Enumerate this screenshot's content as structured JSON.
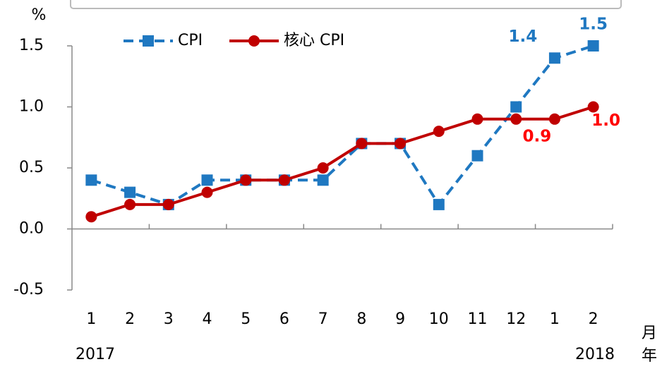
{
  "chart_data": {
    "type": "line",
    "y_unit": "%",
    "x_unit": "月",
    "year_unit": "年",
    "categories": [
      "1",
      "2",
      "3",
      "4",
      "5",
      "6",
      "7",
      "8",
      "9",
      "10",
      "11",
      "12",
      "1",
      "2"
    ],
    "years": [
      "2017",
      "2018"
    ],
    "series": [
      {
        "name": "CPI",
        "color": "#1f78c1",
        "dash": true,
        "marker": "square",
        "values": [
          0.4,
          0.3,
          0.2,
          0.4,
          0.4,
          0.4,
          0.4,
          0.7,
          0.7,
          0.2,
          0.6,
          1.0,
          1.4,
          1.5
        ],
        "value_labels": [
          null,
          null,
          null,
          null,
          null,
          null,
          null,
          null,
          null,
          null,
          null,
          null,
          "1.4",
          "1.5"
        ],
        "label_color": "#1f78c1"
      },
      {
        "name": "核心 CPI",
        "color": "#c00000",
        "dash": false,
        "marker": "circle",
        "values": [
          0.1,
          0.2,
          0.2,
          0.3,
          0.4,
          0.4,
          0.5,
          0.7,
          0.7,
          0.8,
          0.9,
          0.9,
          0.9,
          1.0
        ],
        "value_labels": [
          null,
          null,
          null,
          null,
          null,
          null,
          null,
          null,
          null,
          null,
          null,
          null,
          "0.9",
          "1.0"
        ],
        "label_color": "#ff0000"
      }
    ],
    "ylim": [
      -0.5,
      1.5
    ],
    "yticks": [
      -0.5,
      {
        "value": 0,
        "label": "0.0"
      },
      0.5,
      {
        "value": 1,
        "label": "1.0"
      },
      1.5
    ]
  }
}
